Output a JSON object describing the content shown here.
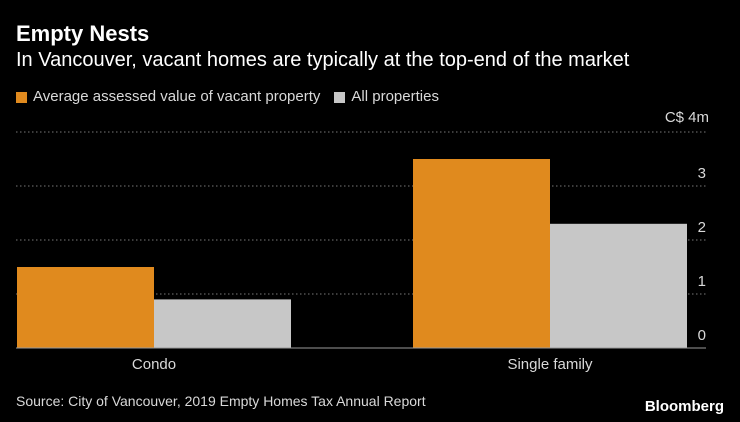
{
  "header": {
    "title": "Empty Nests",
    "subtitle": "In Vancouver, vacant homes are typically at the top-end of the market"
  },
  "footer": {
    "source": "Source: City of Vancouver, 2019 Empty Homes Tax Annual Report",
    "brand": "Bloomberg"
  },
  "colors": {
    "vacant": "#E08A1E",
    "all": "#C7C7C7",
    "grid": "#777777",
    "axis": "#9a9a9a",
    "text": "#d9d9d9"
  },
  "chart_data": {
    "type": "bar",
    "title": "Empty Nests",
    "subtitle": "In Vancouver, vacant homes are typically at the top-end of the market",
    "categories": [
      "Condo",
      "Single family"
    ],
    "series": [
      {
        "name": "Average assessed value of vacant property",
        "values": [
          1.5,
          3.5
        ]
      },
      {
        "name": "All properties",
        "values": [
          0.9,
          2.3
        ]
      }
    ],
    "xlabel": "",
    "ylabel": "",
    "y_unit_label": "C$ 4m",
    "yticks": [
      0,
      1,
      2,
      3,
      4
    ],
    "ytick_labels": [
      "0",
      "1",
      "2",
      "3",
      ""
    ],
    "ylim": [
      0,
      4
    ],
    "grid": true,
    "legend": "top-left"
  }
}
